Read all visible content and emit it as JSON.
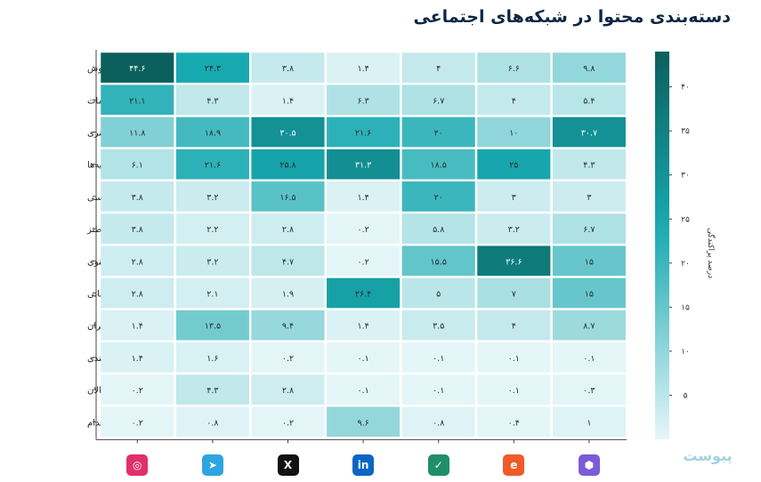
{
  "page": {
    "title": "دسته‌بندی محتوا در شبکه‌های اجتماعی",
    "brand": "پیوست"
  },
  "chart_data": {
    "type": "heatmap",
    "title": "دسته‌بندی محتوا در شبکه‌های اجتماعی",
    "colorbar_label": "درصد پراکندگی",
    "colorbar_ticks": [
      "۴۰",
      "۳۵",
      "۳۰",
      "۲۵",
      "۲۰",
      "۱۵",
      "۱۰",
      "۵"
    ],
    "colorbar_tick_values": [
      40,
      35,
      30,
      25,
      20,
      15,
      10,
      5
    ],
    "color_range": [
      0,
      44
    ],
    "colors": {
      "low": "#e6f6f8",
      "mid": "#17a9b0",
      "high": "#0b5f5c"
    },
    "rows": [
      "تجاری و فروش",
      "ارائه خدمات",
      "سبک زندگی و هنری",
      "اخبار و اطلاعیه‌ها",
      "اجتماعی و سیاسی",
      "سرگرمی و طنز",
      "مذهبی و معنوی",
      "آموزش و اطلاع رسانی",
      "تبلیغات دیگران",
      "شرط‌بندی",
      "محتوای بزرگسالان",
      "آگهی‌های استخدام"
    ],
    "columns": [
      "instagram-icon",
      "telegram-icon",
      "x-icon",
      "linkedin-icon",
      "check-app-icon",
      "e-app-icon",
      "cube-app-icon"
    ],
    "values": [
      [
        44.6,
        24.3,
        3.8,
        1.4,
        4,
        6.6,
        9.8
      ],
      [
        21.1,
        4.3,
        1.4,
        6.3,
        6.7,
        4,
        5.4
      ],
      [
        11.8,
        18.9,
        30.5,
        21.6,
        20,
        10,
        30.7
      ],
      [
        6.1,
        21.6,
        25.8,
        31.3,
        18.5,
        25,
        4.3
      ],
      [
        3.8,
        3.2,
        16.5,
        1.4,
        20,
        3,
        3
      ],
      [
        3.8,
        2.2,
        2.8,
        0.2,
        5.8,
        3.2,
        6.7
      ],
      [
        2.8,
        3.2,
        4.7,
        0.2,
        15.5,
        36.6,
        15
      ],
      [
        2.8,
        2.1,
        1.9,
        26.4,
        5,
        7,
        15
      ],
      [
        1.4,
        13.5,
        9.4,
        1.4,
        3.5,
        4,
        8.7
      ],
      [
        1.4,
        1.6,
        0.2,
        0.1,
        0.1,
        0.1,
        0.1
      ],
      [
        0.2,
        4.3,
        2.8,
        0.1,
        0.1,
        0.1,
        0.3
      ],
      [
        0.2,
        0.8,
        0.2,
        9.6,
        0.8,
        0.4,
        1
      ]
    ],
    "labels": [
      [
        "۴۴.۶",
        "۲۴.۳",
        "۳.۸",
        "۱.۴",
        "۴",
        "۶.۶",
        "۹.۸"
      ],
      [
        "۲۱.۱",
        "۴.۳",
        "۱.۴",
        "۶.۳",
        "۶.۷",
        "۴",
        "۵.۴"
      ],
      [
        "۱۱.۸",
        "۱۸.۹",
        "۳۰.۵",
        "۲۱.۶",
        "۲۰",
        "۱۰",
        "۳۰.۷"
      ],
      [
        "۶.۱",
        "۲۱.۶",
        "۲۵.۸",
        "۳۱.۳",
        "۱۸.۵",
        "۲۵",
        "۴.۳"
      ],
      [
        "۳.۸",
        "۳.۲",
        "۱۶.۵",
        "۱.۴",
        "۲۰",
        "۳",
        "۳"
      ],
      [
        "۳.۸",
        "۲.۲",
        "۲.۸",
        "۰.۲",
        "۵.۸",
        "۳.۲",
        "۶.۷"
      ],
      [
        "۲.۸",
        "۳.۲",
        "۴.۷",
        "۰.۲",
        "۱۵.۵",
        "۳۶.۶",
        "۱۵"
      ],
      [
        "۲.۸",
        "۲.۱",
        "۱.۹",
        "۲۶.۴",
        "۵",
        "۷",
        "۱۵"
      ],
      [
        "۱.۴",
        "۱۳.۵",
        "۹.۴",
        "۱.۴",
        "۳.۵",
        "۴",
        "۸.۷"
      ],
      [
        "۱.۴",
        "۱.۶",
        "۰.۲",
        "۰.۱",
        "۰.۱",
        "۰.۱",
        "۰.۱"
      ],
      [
        "۰.۲",
        "۴.۳",
        "۲.۸",
        "۰.۱",
        "۰.۱",
        "۰.۱",
        "۰.۳"
      ],
      [
        "۰.۲",
        "۰.۸",
        "۰.۲",
        "۹.۶",
        "۰.۸",
        "۰.۴",
        "۱"
      ]
    ]
  },
  "icons": [
    {
      "name": "instagram-icon",
      "color": "#e1306c",
      "glyph": "◎"
    },
    {
      "name": "telegram-icon",
      "color": "#2ca5e0",
      "glyph": "➤"
    },
    {
      "name": "x-icon",
      "color": "#111111",
      "glyph": "X"
    },
    {
      "name": "linkedin-icon",
      "color": "#0a66c2",
      "glyph": "in"
    },
    {
      "name": "check-app-icon",
      "color": "#1f8f6a",
      "glyph": "✓"
    },
    {
      "name": "e-app-icon",
      "color": "#f05a28",
      "glyph": "e"
    },
    {
      "name": "cube-app-icon",
      "color": "#7b5cd6",
      "glyph": "⬢"
    }
  ]
}
